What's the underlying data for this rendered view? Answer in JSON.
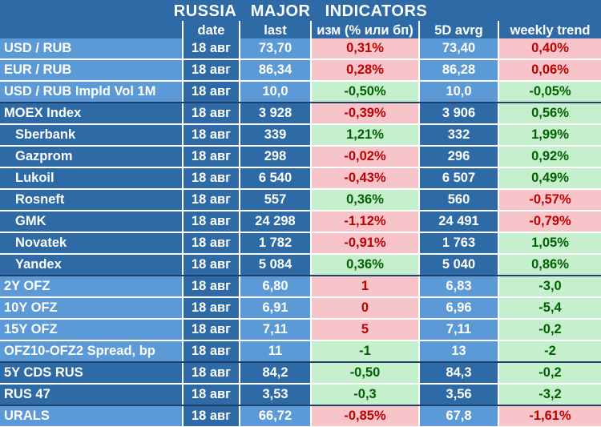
{
  "title": "RUSSIA   MAJOR   INDICATORS",
  "headers": [
    "date",
    "last",
    "изм (% или бп)",
    "5D avrg",
    "weekly trend"
  ],
  "colors": {
    "header_bg": "#2e6aa6",
    "row_bg_light": "#5b9ad6",
    "row_bg_dark": "#2e6aa6",
    "negative_bg": "#f7c5c9",
    "negative_text": "#c00000",
    "positive_bg": "#c6efce",
    "positive_text": "#006100"
  },
  "rows": [
    {
      "name": "USD / RUB",
      "date": "18 авг",
      "last": "73,70",
      "change": "0,31%",
      "avg5d": "73,40",
      "trend": "0,40%"
    },
    {
      "name": "EUR / RUB",
      "date": "18 авг",
      "last": "86,34",
      "change": "0,28%",
      "avg5d": "86,28",
      "trend": "0,06%"
    },
    {
      "name": "USD / RUB Impld Vol 1M",
      "date": "18 авг",
      "last": "10,0",
      "change": "-0,50%",
      "avg5d": "10,0",
      "trend": "-0,05%"
    },
    {
      "name": "MOEX Index",
      "date": "18 авг",
      "last": "3 928",
      "change": "-0,39%",
      "avg5d": "3 906",
      "trend": "0,56%"
    },
    {
      "name": "Sberbank",
      "date": "18 авг",
      "last": "339",
      "change": "1,21%",
      "avg5d": "332",
      "trend": "1,99%"
    },
    {
      "name": "Gazprom",
      "date": "18 авг",
      "last": "298",
      "change": "-0,02%",
      "avg5d": "296",
      "trend": "0,92%"
    },
    {
      "name": "Lukoil",
      "date": "18 авг",
      "last": "6 540",
      "change": "-0,43%",
      "avg5d": "6 507",
      "trend": "0,49%"
    },
    {
      "name": "Rosneft",
      "date": "18 авг",
      "last": "557",
      "change": "0,36%",
      "avg5d": "560",
      "trend": "-0,57%"
    },
    {
      "name": "GMK",
      "date": "18 авг",
      "last": "24 298",
      "change": "-1,12%",
      "avg5d": "24 491",
      "trend": "-0,79%"
    },
    {
      "name": "Novatek",
      "date": "18 авг",
      "last": "1 782",
      "change": "-0,91%",
      "avg5d": "1 763",
      "trend": "1,05%"
    },
    {
      "name": "Yandex",
      "date": "18 авг",
      "last": "5 084",
      "change": "0,36%",
      "avg5d": "5 040",
      "trend": "0,86%"
    },
    {
      "name": "2Y OFZ",
      "date": "18 авг",
      "last": "6,80",
      "change": "1",
      "avg5d": "6,83",
      "trend": "-3,0"
    },
    {
      "name": "10Y OFZ",
      "date": "18 авг",
      "last": "6,91",
      "change": "0",
      "avg5d": "6,96",
      "trend": "-5,4"
    },
    {
      "name": "15Y OFZ",
      "date": "18 авг",
      "last": "7,11",
      "change": "5",
      "avg5d": "7,11",
      "trend": "-0,2"
    },
    {
      "name": "OFZ10-OFZ2 Spread, bp",
      "date": "18 авг",
      "last": "11",
      "change": "-1",
      "avg5d": "13",
      "trend": "-2"
    },
    {
      "name": "5Y CDS RUS",
      "date": "18 авг",
      "last": "84,2",
      "change": "-0,50",
      "avg5d": "84,3",
      "trend": "-0,2"
    },
    {
      "name": "RUS 47",
      "date": "18 авг",
      "last": "3,53",
      "change": "-0,3",
      "avg5d": "3,56",
      "trend": "-3,2"
    },
    {
      "name": "URALS",
      "date": "18 авг",
      "last": "66,72",
      "change": "-0,85%",
      "avg5d": "67,8",
      "trend": "-1,61%"
    }
  ]
}
